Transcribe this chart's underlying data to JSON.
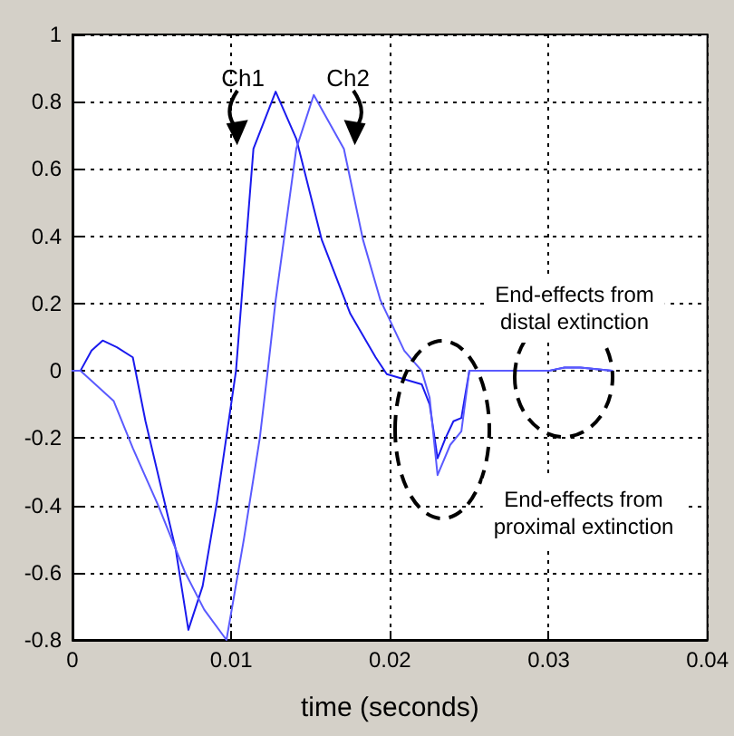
{
  "chart_data": {
    "type": "line",
    "xlabel": "time (seconds)",
    "xlim": [
      0,
      0.04
    ],
    "xticks": [
      0,
      0.01,
      0.02,
      0.03,
      0.04
    ],
    "ylim": [
      -0.8,
      1
    ],
    "yticks": [
      -0.8,
      -0.6,
      -0.4,
      -0.2,
      0,
      0.2,
      0.4,
      0.6,
      0.8,
      1
    ],
    "grid": true,
    "marker": "none",
    "line_style": "solid",
    "series": [
      {
        "color": "#1a1aee",
        "x": [
          0,
          0.0005,
          0.0012,
          0.0019,
          0.0028,
          0.0038,
          0.0046,
          0.0057,
          0.0065,
          0.0073,
          0.0082,
          0.0091,
          0.0103,
          0.0114,
          0.0128,
          0.0141,
          0.0157,
          0.0175,
          0.0191,
          0.0198,
          0.022,
          0.0225,
          0.023,
          0.0235,
          0.024,
          0.0245,
          0.025,
          0.03,
          0.031,
          0.032,
          0.034
        ],
        "values": [
          0,
          0,
          0.06,
          0.09,
          0.07,
          0.04,
          -0.15,
          -0.37,
          -0.53,
          -0.77,
          -0.64,
          -0.39,
          0,
          0.66,
          0.83,
          0.69,
          0.39,
          0.17,
          0.04,
          -0.01,
          -0.04,
          -0.1,
          -0.26,
          -0.2,
          -0.15,
          -0.14,
          0,
          0,
          0.01,
          0.01,
          0
        ]
      },
      {
        "color": "#5a5aff",
        "x": [
          0,
          0.0005,
          0.0026,
          0.0038,
          0.0054,
          0.0071,
          0.0083,
          0.0097,
          0.0108,
          0.0118,
          0.0123,
          0.0128,
          0.0141,
          0.0152,
          0.0171,
          0.0183,
          0.0194,
          0.0209,
          0.022,
          0.0225,
          0.023,
          0.0238,
          0.0245,
          0.025,
          0.03,
          0.031,
          0.032,
          0.034
        ],
        "values": [
          0,
          0,
          -0.09,
          -0.23,
          -0.4,
          -0.6,
          -0.71,
          -0.8,
          -0.5,
          -0.2,
          0,
          0.21,
          0.66,
          0.82,
          0.66,
          0.39,
          0.21,
          0.06,
          0,
          -0.08,
          -0.31,
          -0.22,
          -0.18,
          0,
          0,
          0.01,
          0.01,
          0
        ]
      }
    ],
    "annotations": [
      {
        "text": "Ch1",
        "x": 0.0114,
        "y": 0.66
      },
      {
        "text": "Ch2",
        "x": 0.0171,
        "y": 0.66
      },
      "End-effects from\ndistal extinction",
      "End-effects from\nproximal extinction"
    ]
  }
}
